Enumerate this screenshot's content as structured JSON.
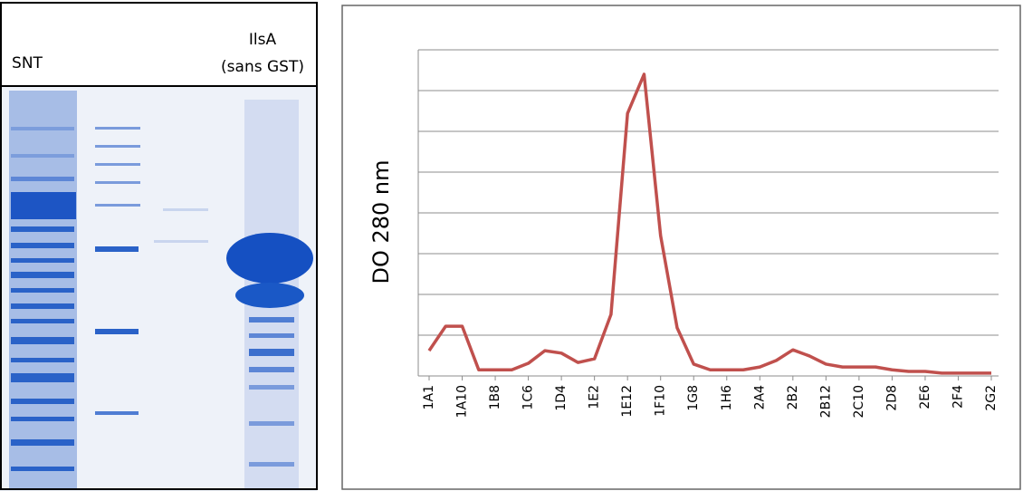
{
  "gel": {
    "labels": [
      "SNT",
      "IlsA",
      "(sans GST)"
    ]
  },
  "chart_data": {
    "type": "line",
    "y_label": "DO 280 nm",
    "categories": [
      "1A1",
      null,
      "1A10",
      null,
      "1B8",
      null,
      "1C6",
      null,
      "1D4",
      null,
      "1E2",
      null,
      "1E12",
      null,
      "1F10",
      null,
      "1G8",
      null,
      "1H6",
      null,
      "2A4",
      null,
      "2B2",
      null,
      "2B12",
      null,
      "2C10",
      null,
      "2D8",
      null,
      "2E6",
      null,
      "2F4",
      null,
      "2G2"
    ],
    "values": [
      0.62,
      1.22,
      1.22,
      0.15,
      0.15,
      0.15,
      0.31,
      0.62,
      0.56,
      0.33,
      0.42,
      1.51,
      6.44,
      7.4,
      3.44,
      1.18,
      0.29,
      0.15,
      0.15,
      0.15,
      0.22,
      0.38,
      0.64,
      0.49,
      0.29,
      0.22,
      0.22,
      0.22,
      0.15,
      0.11,
      0.11,
      0.07,
      0.07,
      0.07,
      0.07
    ],
    "color": "#c0504d",
    "ylim": [
      0,
      8
    ],
    "yticks": [
      0,
      1,
      2,
      3,
      4,
      5,
      6,
      7,
      8
    ],
    "grid": true,
    "show_ytick_labels": false
  }
}
